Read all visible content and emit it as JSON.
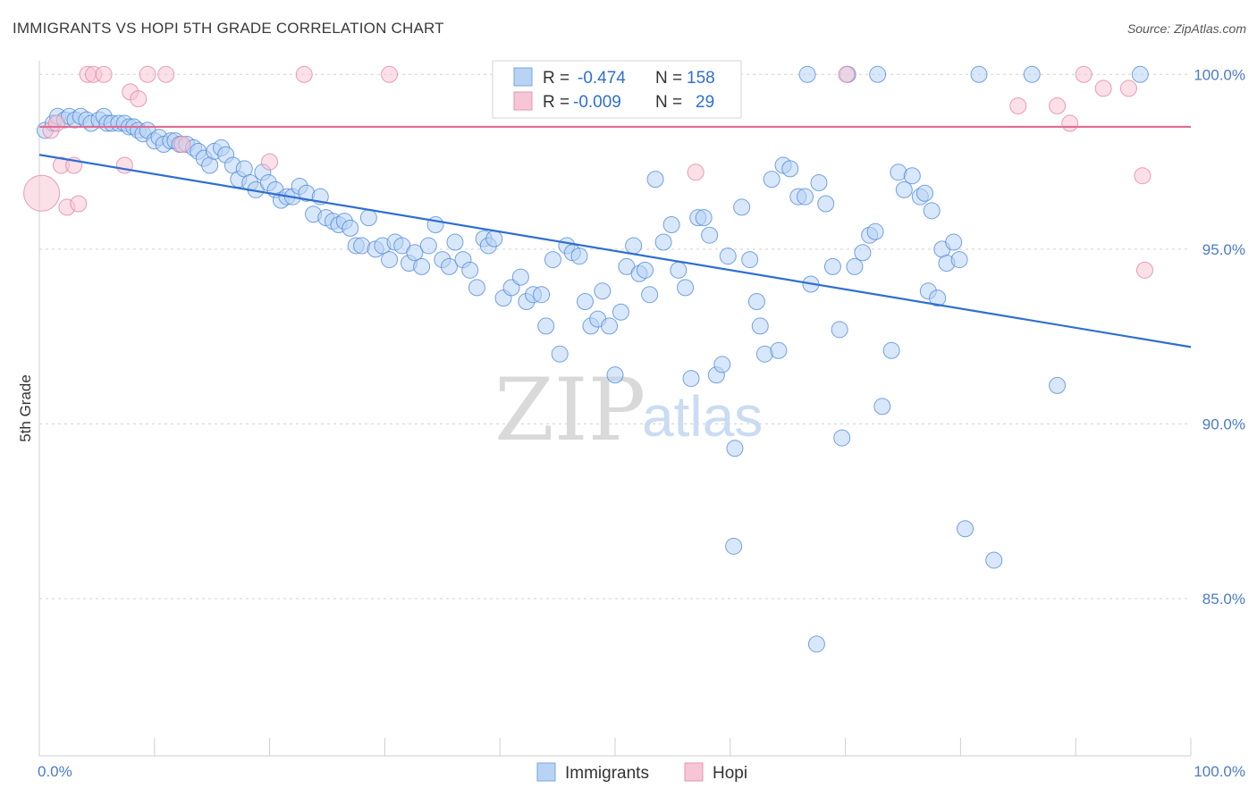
{
  "title": "IMMIGRANTS VS HOPI 5TH GRADE CORRELATION CHART",
  "source": "Source: ZipAtlas.com",
  "watermark": {
    "zip": "ZIP",
    "atlas": "atlas"
  },
  "colors": {
    "immigrants": "#4a86d8",
    "hopi": "#e07fa0",
    "immigrants_fill": "#b8d3f4",
    "hopi_fill": "#f7c6d6",
    "tick": "#4a7bc8"
  },
  "legend": {
    "rows": [
      {
        "r_label": "R =",
        "r_value": "-0.474",
        "n_label": "N =",
        "n_value": "158"
      },
      {
        "r_label": "R =",
        "r_value": "-0.009",
        "n_label": "N =",
        "n_value": "29"
      }
    ],
    "bottom": [
      "Immigrants",
      "Hopi"
    ]
  },
  "chart_data": {
    "type": "scatter",
    "xlabel": "",
    "ylabel": "5th Grade",
    "xlim": [
      0,
      100
    ],
    "ylim": [
      80.5,
      100.8
    ],
    "x_tick_labels": [
      "0.0%",
      "100.0%"
    ],
    "y_ticks": [
      85,
      90,
      95,
      100
    ],
    "y_tick_labels": [
      "85.0%",
      "90.0%",
      "95.0%",
      "100.0%"
    ],
    "grid": true,
    "legend_position": "top-center",
    "series": [
      {
        "name": "Immigrants",
        "trend": {
          "x": [
            0,
            100
          ],
          "y": [
            97.7,
            92.2
          ]
        },
        "points": [
          [
            0.5,
            98.4
          ],
          [
            1.2,
            98.6
          ],
          [
            1.6,
            98.8
          ],
          [
            2.2,
            98.7
          ],
          [
            2.6,
            98.8
          ],
          [
            3.1,
            98.7
          ],
          [
            3.6,
            98.8
          ],
          [
            4.1,
            98.7
          ],
          [
            4.5,
            98.6
          ],
          [
            5.2,
            98.7
          ],
          [
            5.6,
            98.8
          ],
          [
            5.9,
            98.6
          ],
          [
            6.3,
            98.6
          ],
          [
            6.9,
            98.6
          ],
          [
            7.4,
            98.6
          ],
          [
            7.8,
            98.5
          ],
          [
            8.2,
            98.5
          ],
          [
            8.6,
            98.4
          ],
          [
            9.0,
            98.3
          ],
          [
            9.4,
            98.4
          ],
          [
            10.0,
            98.1
          ],
          [
            10.4,
            98.2
          ],
          [
            10.8,
            98.0
          ],
          [
            11.4,
            98.1
          ],
          [
            11.8,
            98.1
          ],
          [
            12.2,
            98.0
          ],
          [
            12.8,
            98.0
          ],
          [
            13.4,
            97.9
          ],
          [
            13.8,
            97.8
          ],
          [
            14.3,
            97.6
          ],
          [
            14.8,
            97.4
          ],
          [
            15.2,
            97.8
          ],
          [
            15.8,
            97.9
          ],
          [
            16.2,
            97.7
          ],
          [
            16.8,
            97.4
          ],
          [
            17.3,
            97.0
          ],
          [
            17.8,
            97.3
          ],
          [
            18.3,
            96.9
          ],
          [
            18.8,
            96.7
          ],
          [
            19.4,
            97.2
          ],
          [
            19.9,
            96.9
          ],
          [
            20.5,
            96.7
          ],
          [
            21.0,
            96.4
          ],
          [
            21.5,
            96.5
          ],
          [
            22.0,
            96.5
          ],
          [
            22.6,
            96.8
          ],
          [
            23.2,
            96.6
          ],
          [
            23.8,
            96.0
          ],
          [
            24.4,
            96.5
          ],
          [
            24.9,
            95.9
          ],
          [
            25.5,
            95.8
          ],
          [
            26.0,
            95.7
          ],
          [
            26.5,
            95.8
          ],
          [
            27.0,
            95.6
          ],
          [
            27.5,
            95.1
          ],
          [
            28.0,
            95.1
          ],
          [
            28.6,
            95.9
          ],
          [
            29.2,
            95.0
          ],
          [
            29.8,
            95.1
          ],
          [
            30.4,
            94.7
          ],
          [
            30.9,
            95.2
          ],
          [
            31.5,
            95.1
          ],
          [
            32.1,
            94.6
          ],
          [
            32.6,
            94.9
          ],
          [
            33.2,
            94.5
          ],
          [
            33.8,
            95.1
          ],
          [
            34.4,
            95.7
          ],
          [
            35.0,
            94.7
          ],
          [
            35.6,
            94.5
          ],
          [
            36.1,
            95.2
          ],
          [
            36.8,
            94.7
          ],
          [
            37.4,
            94.4
          ],
          [
            38.0,
            93.9
          ],
          [
            38.6,
            95.3
          ],
          [
            39.0,
            95.1
          ],
          [
            39.5,
            95.3
          ],
          [
            40.3,
            93.6
          ],
          [
            41.0,
            93.9
          ],
          [
            41.8,
            94.2
          ],
          [
            42.3,
            93.5
          ],
          [
            42.9,
            93.7
          ],
          [
            43.6,
            93.7
          ],
          [
            44.0,
            92.8
          ],
          [
            44.6,
            94.7
          ],
          [
            45.2,
            92.0
          ],
          [
            45.8,
            95.1
          ],
          [
            46.3,
            94.9
          ],
          [
            46.9,
            94.8
          ],
          [
            47.4,
            93.5
          ],
          [
            47.9,
            92.8
          ],
          [
            48.5,
            93.0
          ],
          [
            48.9,
            93.8
          ],
          [
            49.5,
            92.8
          ],
          [
            50.0,
            91.4
          ],
          [
            50.5,
            93.2
          ],
          [
            51.0,
            94.5
          ],
          [
            51.6,
            95.1
          ],
          [
            52.1,
            94.3
          ],
          [
            52.6,
            94.4
          ],
          [
            53.0,
            93.7
          ],
          [
            53.5,
            97.0
          ],
          [
            54.2,
            95.2
          ],
          [
            54.9,
            95.7
          ],
          [
            55.5,
            94.4
          ],
          [
            56.1,
            93.9
          ],
          [
            56.6,
            91.3
          ],
          [
            57.2,
            95.9
          ],
          [
            57.7,
            95.9
          ],
          [
            58.2,
            95.4
          ],
          [
            58.8,
            91.4
          ],
          [
            59.3,
            91.7
          ],
          [
            59.8,
            94.8
          ],
          [
            60.4,
            89.3
          ],
          [
            61.0,
            96.2
          ],
          [
            61.7,
            94.7
          ],
          [
            62.3,
            93.5
          ],
          [
            62.6,
            92.8
          ],
          [
            63.0,
            92.0
          ],
          [
            63.6,
            97.0
          ],
          [
            64.2,
            92.1
          ],
          [
            64.6,
            97.4
          ],
          [
            65.2,
            97.3
          ],
          [
            65.9,
            96.5
          ],
          [
            66.5,
            96.5
          ],
          [
            67.0,
            94.0
          ],
          [
            67.7,
            96.9
          ],
          [
            68.3,
            96.3
          ],
          [
            68.9,
            94.5
          ],
          [
            69.5,
            92.7
          ],
          [
            69.7,
            89.6
          ],
          [
            70.2,
            100.0
          ],
          [
            70.8,
            94.5
          ],
          [
            71.5,
            94.9
          ],
          [
            72.1,
            95.4
          ],
          [
            72.6,
            95.5
          ],
          [
            73.2,
            90.5
          ],
          [
            74.0,
            92.1
          ],
          [
            74.6,
            97.2
          ],
          [
            75.1,
            96.7
          ],
          [
            75.8,
            97.1
          ],
          [
            76.5,
            96.5
          ],
          [
            76.9,
            96.6
          ],
          [
            77.2,
            93.8
          ],
          [
            77.5,
            96.1
          ],
          [
            78.0,
            93.6
          ],
          [
            78.4,
            95.0
          ],
          [
            78.8,
            94.6
          ],
          [
            79.4,
            95.2
          ],
          [
            79.9,
            94.7
          ],
          [
            80.4,
            87.0
          ],
          [
            81.6,
            100.0
          ],
          [
            82.9,
            86.1
          ],
          [
            86.2,
            100.0
          ],
          [
            88.4,
            91.1
          ],
          [
            95.6,
            100.0
          ],
          [
            60.3,
            86.5
          ],
          [
            67.5,
            83.7
          ],
          [
            72.8,
            100.0
          ],
          [
            66.7,
            100.0
          ]
        ]
      },
      {
        "name": "Hopi",
        "trend": {
          "x": [
            0,
            100
          ],
          "y": [
            98.5,
            98.5
          ]
        },
        "points": [
          [
            0.2,
            96.6
          ],
          [
            1.0,
            98.4
          ],
          [
            1.5,
            98.6
          ],
          [
            1.9,
            97.4
          ],
          [
            2.4,
            96.2
          ],
          [
            3.0,
            97.4
          ],
          [
            3.4,
            96.3
          ],
          [
            4.2,
            100.0
          ],
          [
            4.7,
            100.0
          ],
          [
            5.6,
            100.0
          ],
          [
            7.4,
            97.4
          ],
          [
            7.9,
            99.5
          ],
          [
            8.6,
            99.3
          ],
          [
            9.4,
            100.0
          ],
          [
            11.0,
            100.0
          ],
          [
            12.4,
            98.0
          ],
          [
            20.0,
            97.5
          ],
          [
            23.0,
            100.0
          ],
          [
            30.4,
            100.0
          ],
          [
            57.0,
            97.2
          ],
          [
            70.1,
            100.0
          ],
          [
            85.0,
            99.1
          ],
          [
            88.4,
            99.1
          ],
          [
            89.5,
            98.6
          ],
          [
            90.7,
            100.0
          ],
          [
            92.4,
            99.6
          ],
          [
            94.6,
            99.6
          ],
          [
            95.8,
            97.1
          ],
          [
            96.0,
            94.4
          ]
        ]
      }
    ]
  }
}
